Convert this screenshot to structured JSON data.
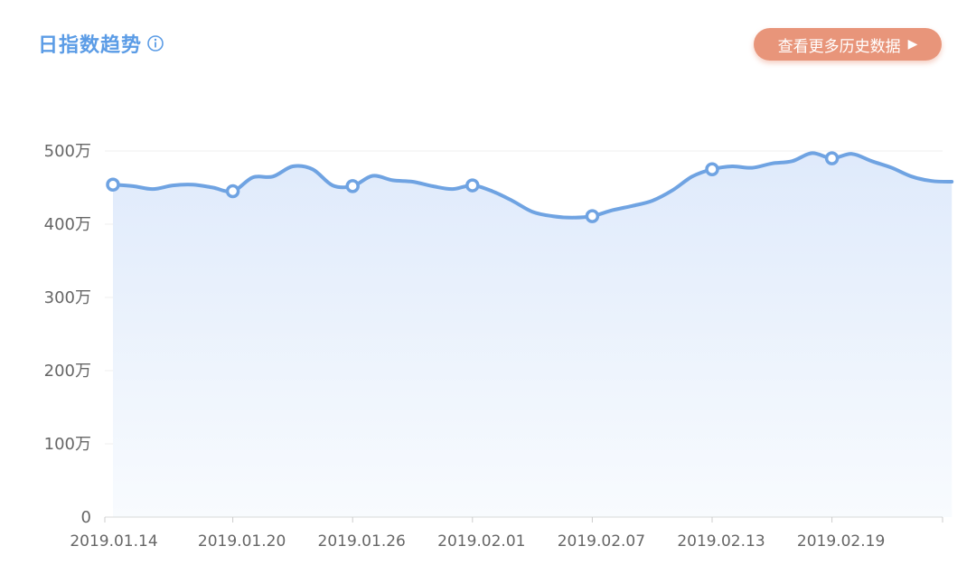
{
  "header": {
    "title": "日指数趋势",
    "info_icon": "info-icon",
    "history_button": "查看更多历史数据",
    "history_arrow": "▶"
  },
  "colors": {
    "title": "#5b9ce6",
    "line": "#6fa3e2",
    "button": "#e8957a"
  },
  "chart_data": {
    "type": "area",
    "title": "",
    "xlabel": "",
    "ylabel": "",
    "ylim": [
      0,
      5000000
    ],
    "yticks": [
      {
        "value": 0,
        "label": "0"
      },
      {
        "value": 1000000,
        "label": "100万"
      },
      {
        "value": 2000000,
        "label": "200万"
      },
      {
        "value": 3000000,
        "label": "300万"
      },
      {
        "value": 4000000,
        "label": "400万"
      },
      {
        "value": 5000000,
        "label": "500万"
      }
    ],
    "xticks": [
      "2019.01.14",
      "2019.01.20",
      "2019.01.26",
      "2019.02.01",
      "2019.02.07",
      "2019.02.13",
      "2019.02.19"
    ],
    "grid": true,
    "x": [
      "2019.01.14",
      "2019.01.15",
      "2019.01.16",
      "2019.01.17",
      "2019.01.18",
      "2019.01.19",
      "2019.01.20",
      "2019.01.21",
      "2019.01.22",
      "2019.01.23",
      "2019.01.24",
      "2019.01.25",
      "2019.01.26",
      "2019.01.27",
      "2019.01.28",
      "2019.01.29",
      "2019.01.30",
      "2019.01.31",
      "2019.02.01",
      "2019.02.02",
      "2019.02.03",
      "2019.02.04",
      "2019.02.05",
      "2019.02.06",
      "2019.02.07",
      "2019.02.08",
      "2019.02.09",
      "2019.02.10",
      "2019.02.11",
      "2019.02.12",
      "2019.02.13",
      "2019.02.14",
      "2019.02.15",
      "2019.02.16",
      "2019.02.17",
      "2019.02.18",
      "2019.02.19",
      "2019.02.20",
      "2019.02.21",
      "2019.02.22",
      "2019.02.23",
      "2019.02.24",
      "2019.02.25"
    ],
    "series": [
      {
        "values": [
          4540000,
          4520000,
          4480000,
          4530000,
          4540000,
          4500000,
          4450000,
          4640000,
          4650000,
          4790000,
          4750000,
          4530000,
          4520000,
          4660000,
          4600000,
          4580000,
          4520000,
          4480000,
          4530000,
          4450000,
          4320000,
          4170000,
          4110000,
          4090000,
          4110000,
          4190000,
          4250000,
          4320000,
          4460000,
          4650000,
          4750000,
          4790000,
          4770000,
          4830000,
          4860000,
          4970000,
          4900000,
          4960000,
          4860000,
          4770000,
          4650000,
          4590000,
          4580000
        ],
        "markers": [
          0,
          6,
          12,
          18,
          24,
          30,
          36
        ]
      }
    ]
  }
}
